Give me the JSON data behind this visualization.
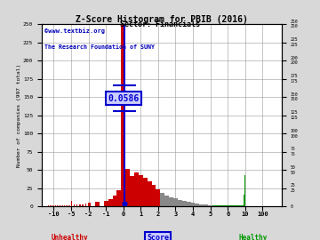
{
  "title": "Z-Score Histogram for PBIB (2016)",
  "subtitle": "Sector: Financials",
  "watermark1": "©www.textbiz.org",
  "watermark2": "The Research Foundation of SUNY",
  "ylabel_left": "Number of companies (997 total)",
  "company_score": 0.0586,
  "score_label": "0.0586",
  "ylim": [
    0,
    250
  ],
  "xtick_vals": [
    -10,
    -5,
    -2,
    -1,
    0,
    1,
    2,
    3,
    4,
    5,
    6,
    10,
    100
  ],
  "xtick_labels": [
    "-10",
    "-5",
    "-2",
    "-1",
    "0",
    "1",
    "2",
    "3",
    "4",
    "5",
    "6",
    "10",
    "100"
  ],
  "yticks": [
    0,
    25,
    50,
    75,
    100,
    125,
    150,
    175,
    200,
    225,
    250
  ],
  "background_color": "#d8d8d8",
  "plot_bg_color": "#ffffff",
  "grid_color": "#999999",
  "red_color": "#cc0000",
  "gray_color": "#888888",
  "green_color": "#009900",
  "blue_color": "#0000cc",
  "ann_bg": "#ccccff",
  "red_ranges": [
    [
      -11.5,
      1
    ],
    [
      -11.0,
      1
    ],
    [
      -10.5,
      1
    ],
    [
      -10.0,
      1
    ],
    [
      -9.5,
      1
    ],
    [
      -9.0,
      1
    ],
    [
      -8.5,
      1
    ],
    [
      -8.0,
      1
    ],
    [
      -7.5,
      1
    ],
    [
      -7.0,
      1
    ],
    [
      -6.5,
      1
    ],
    [
      -6.0,
      2
    ],
    [
      -5.5,
      2
    ],
    [
      -5.0,
      8
    ],
    [
      -4.5,
      3
    ],
    [
      -4.0,
      3
    ],
    [
      -3.5,
      3
    ],
    [
      -3.0,
      3
    ],
    [
      -2.5,
      4
    ],
    [
      -2.0,
      5
    ],
    [
      -1.5,
      6
    ],
    [
      -1.0,
      8
    ],
    [
      -0.75,
      10
    ],
    [
      -0.5,
      15
    ],
    [
      -0.25,
      22
    ],
    [
      0.0,
      250
    ],
    [
      0.25,
      52
    ],
    [
      0.5,
      42
    ],
    [
      0.75,
      46
    ],
    [
      1.0,
      43
    ],
    [
      1.25,
      39
    ],
    [
      1.5,
      34
    ],
    [
      1.75,
      29
    ],
    [
      2.0,
      23
    ]
  ],
  "gray_ranges": [
    [
      2.25,
      18
    ],
    [
      2.5,
      15
    ],
    [
      2.75,
      13
    ],
    [
      3.0,
      11
    ],
    [
      3.25,
      9
    ],
    [
      3.5,
      7
    ],
    [
      3.75,
      6
    ],
    [
      4.0,
      5
    ],
    [
      4.25,
      4
    ],
    [
      4.5,
      3
    ],
    [
      4.75,
      3
    ],
    [
      5.0,
      2
    ]
  ],
  "green_ranges": [
    [
      5.25,
      2
    ],
    [
      5.5,
      2
    ],
    [
      5.75,
      2
    ],
    [
      6.0,
      2
    ],
    [
      6.25,
      2
    ],
    [
      6.5,
      1
    ],
    [
      6.75,
      1
    ],
    [
      7.0,
      1
    ],
    [
      7.25,
      1
    ],
    [
      7.5,
      1
    ],
    [
      7.75,
      1
    ],
    [
      8.0,
      1
    ],
    [
      8.25,
      1
    ],
    [
      8.5,
      1
    ],
    [
      8.75,
      1
    ],
    [
      9.0,
      1
    ],
    [
      9.25,
      1
    ],
    [
      9.5,
      2
    ],
    [
      9.75,
      16
    ],
    [
      10.0,
      43
    ],
    [
      10.25,
      9
    ],
    [
      10.5,
      3
    ],
    [
      99.75,
      14
    ],
    [
      100.0,
      5
    ]
  ],
  "bin_width": 0.25
}
